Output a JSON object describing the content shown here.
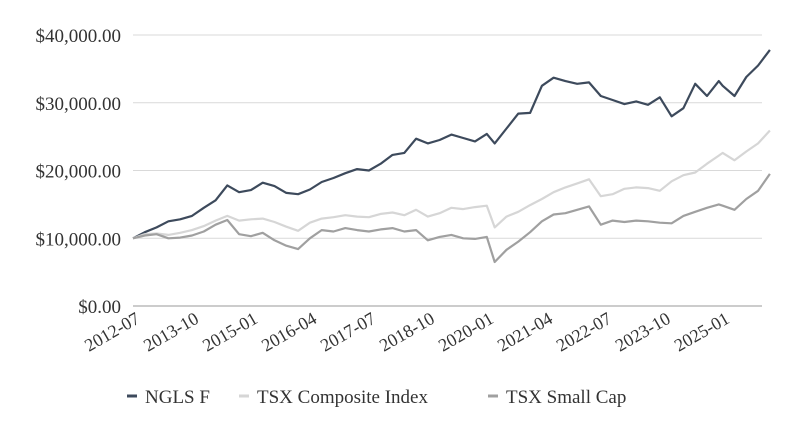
{
  "chart_data": {
    "type": "line",
    "title": "",
    "xlabel": "",
    "ylabel": "",
    "ylim": [
      0,
      40000
    ],
    "y_ticks": [
      "$0.00",
      "$10,000.00",
      "$20,000.00",
      "$30,000.00",
      "$40,000.00"
    ],
    "y_tick_values": [
      0,
      10000,
      20000,
      30000,
      40000
    ],
    "x_ticks": [
      "2012-07",
      "2013-10",
      "2015-01",
      "2016-04",
      "2017-07",
      "2018-10",
      "2020-01",
      "2021-04",
      "2022-07",
      "2023-10",
      "2025-01"
    ],
    "grid": true,
    "legend_position": "bottom",
    "x_start": "2012-07",
    "x_end": "2025-03",
    "series": [
      {
        "name": "NGLS F",
        "color": "#3d4a5c",
        "points": [
          [
            "2012-07",
            10000
          ],
          [
            "2012-10",
            10900
          ],
          [
            "2013-01",
            11600
          ],
          [
            "2013-04",
            12500
          ],
          [
            "2013-07",
            12800
          ],
          [
            "2013-10",
            13300
          ],
          [
            "2014-01",
            14500
          ],
          [
            "2014-04",
            15600
          ],
          [
            "2014-07",
            17800
          ],
          [
            "2014-10",
            16800
          ],
          [
            "2015-01",
            17100
          ],
          [
            "2015-04",
            18200
          ],
          [
            "2015-07",
            17700
          ],
          [
            "2015-10",
            16700
          ],
          [
            "2016-01",
            16500
          ],
          [
            "2016-04",
            17200
          ],
          [
            "2016-07",
            18300
          ],
          [
            "2016-10",
            18900
          ],
          [
            "2017-01",
            19600
          ],
          [
            "2017-04",
            20200
          ],
          [
            "2017-07",
            20000
          ],
          [
            "2017-10",
            21000
          ],
          [
            "2018-01",
            22300
          ],
          [
            "2018-04",
            22600
          ],
          [
            "2018-07",
            24700
          ],
          [
            "2018-10",
            24000
          ],
          [
            "2019-01",
            24500
          ],
          [
            "2019-04",
            25300
          ],
          [
            "2019-07",
            24800
          ],
          [
            "2019-10",
            24300
          ],
          [
            "2020-01",
            25400
          ],
          [
            "2020-03",
            24000
          ],
          [
            "2020-06",
            26200
          ],
          [
            "2020-09",
            28400
          ],
          [
            "2020-12",
            28500
          ],
          [
            "2021-03",
            32500
          ],
          [
            "2021-06",
            33700
          ],
          [
            "2021-09",
            33200
          ],
          [
            "2021-12",
            32800
          ],
          [
            "2022-03",
            33000
          ],
          [
            "2022-06",
            31000
          ],
          [
            "2022-09",
            30400
          ],
          [
            "2022-12",
            29800
          ],
          [
            "2023-03",
            30200
          ],
          [
            "2023-06",
            29700
          ],
          [
            "2023-09",
            30800
          ],
          [
            "2023-12",
            28000
          ],
          [
            "2024-03",
            29200
          ],
          [
            "2024-06",
            32800
          ],
          [
            "2024-09",
            31000
          ],
          [
            "2024-12",
            33200
          ],
          [
            "2025-01",
            32500
          ],
          [
            "2025-04",
            31000
          ],
          [
            "2025-07",
            33800
          ],
          [
            "2025-10",
            35500
          ],
          [
            "2026-01",
            37800
          ]
        ]
      },
      {
        "name": "TSX Composite Index",
        "color": "#d6d6d6",
        "points": [
          [
            "2012-07",
            10000
          ],
          [
            "2012-10",
            10600
          ],
          [
            "2013-01",
            10700
          ],
          [
            "2013-04",
            10500
          ],
          [
            "2013-07",
            10800
          ],
          [
            "2013-10",
            11200
          ],
          [
            "2014-01",
            11800
          ],
          [
            "2014-04",
            12600
          ],
          [
            "2014-07",
            13300
          ],
          [
            "2014-10",
            12600
          ],
          [
            "2015-01",
            12800
          ],
          [
            "2015-04",
            12900
          ],
          [
            "2015-07",
            12400
          ],
          [
            "2015-10",
            11700
          ],
          [
            "2016-01",
            11100
          ],
          [
            "2016-04",
            12300
          ],
          [
            "2016-07",
            12900
          ],
          [
            "2016-10",
            13100
          ],
          [
            "2017-01",
            13400
          ],
          [
            "2017-04",
            13200
          ],
          [
            "2017-07",
            13100
          ],
          [
            "2017-10",
            13600
          ],
          [
            "2018-01",
            13800
          ],
          [
            "2018-04",
            13400
          ],
          [
            "2018-07",
            14200
          ],
          [
            "2018-10",
            13200
          ],
          [
            "2019-01",
            13700
          ],
          [
            "2019-04",
            14500
          ],
          [
            "2019-07",
            14300
          ],
          [
            "2019-10",
            14600
          ],
          [
            "2020-01",
            14800
          ],
          [
            "2020-03",
            11600
          ],
          [
            "2020-06",
            13200
          ],
          [
            "2020-09",
            13900
          ],
          [
            "2020-12",
            14900
          ],
          [
            "2021-03",
            15800
          ],
          [
            "2021-06",
            16800
          ],
          [
            "2021-09",
            17500
          ],
          [
            "2021-12",
            18100
          ],
          [
            "2022-03",
            18700
          ],
          [
            "2022-06",
            16200
          ],
          [
            "2022-09",
            16500
          ],
          [
            "2022-12",
            17300
          ],
          [
            "2023-03",
            17500
          ],
          [
            "2023-06",
            17400
          ],
          [
            "2023-09",
            17000
          ],
          [
            "2023-12",
            18400
          ],
          [
            "2024-03",
            19300
          ],
          [
            "2024-06",
            19700
          ],
          [
            "2024-09",
            21000
          ],
          [
            "2024-12",
            22200
          ],
          [
            "2025-01",
            22600
          ],
          [
            "2025-04",
            21500
          ],
          [
            "2025-07",
            22800
          ],
          [
            "2025-10",
            24000
          ],
          [
            "2026-01",
            25900
          ]
        ]
      },
      {
        "name": "TSX Small Cap",
        "color": "#a0a0a0",
        "points": [
          [
            "2012-07",
            10000
          ],
          [
            "2012-10",
            10400
          ],
          [
            "2013-01",
            10600
          ],
          [
            "2013-04",
            10000
          ],
          [
            "2013-07",
            10100
          ],
          [
            "2013-10",
            10400
          ],
          [
            "2014-01",
            11000
          ],
          [
            "2014-04",
            12000
          ],
          [
            "2014-07",
            12700
          ],
          [
            "2014-10",
            10600
          ],
          [
            "2015-01",
            10300
          ],
          [
            "2015-04",
            10800
          ],
          [
            "2015-07",
            9700
          ],
          [
            "2015-10",
            8900
          ],
          [
            "2016-01",
            8400
          ],
          [
            "2016-04",
            10000
          ],
          [
            "2016-07",
            11200
          ],
          [
            "2016-10",
            11000
          ],
          [
            "2017-01",
            11500
          ],
          [
            "2017-04",
            11200
          ],
          [
            "2017-07",
            11000
          ],
          [
            "2017-10",
            11300
          ],
          [
            "2018-01",
            11500
          ],
          [
            "2018-04",
            11000
          ],
          [
            "2018-07",
            11200
          ],
          [
            "2018-10",
            9700
          ],
          [
            "2019-01",
            10200
          ],
          [
            "2019-04",
            10500
          ],
          [
            "2019-07",
            10000
          ],
          [
            "2019-10",
            9900
          ],
          [
            "2020-01",
            10200
          ],
          [
            "2020-03",
            6500
          ],
          [
            "2020-06",
            8300
          ],
          [
            "2020-09",
            9500
          ],
          [
            "2020-12",
            10900
          ],
          [
            "2021-03",
            12500
          ],
          [
            "2021-06",
            13500
          ],
          [
            "2021-09",
            13700
          ],
          [
            "2021-12",
            14200
          ],
          [
            "2022-03",
            14700
          ],
          [
            "2022-06",
            12000
          ],
          [
            "2022-09",
            12600
          ],
          [
            "2022-12",
            12400
          ],
          [
            "2023-03",
            12600
          ],
          [
            "2023-06",
            12500
          ],
          [
            "2023-09",
            12300
          ],
          [
            "2023-12",
            12200
          ],
          [
            "2024-03",
            13300
          ],
          [
            "2024-06",
            13900
          ],
          [
            "2024-09",
            14500
          ],
          [
            "2024-12",
            15000
          ],
          [
            "2025-01",
            14800
          ],
          [
            "2025-04",
            14200
          ],
          [
            "2025-07",
            15800
          ],
          [
            "2025-10",
            17000
          ],
          [
            "2026-01",
            19500
          ]
        ]
      }
    ]
  }
}
